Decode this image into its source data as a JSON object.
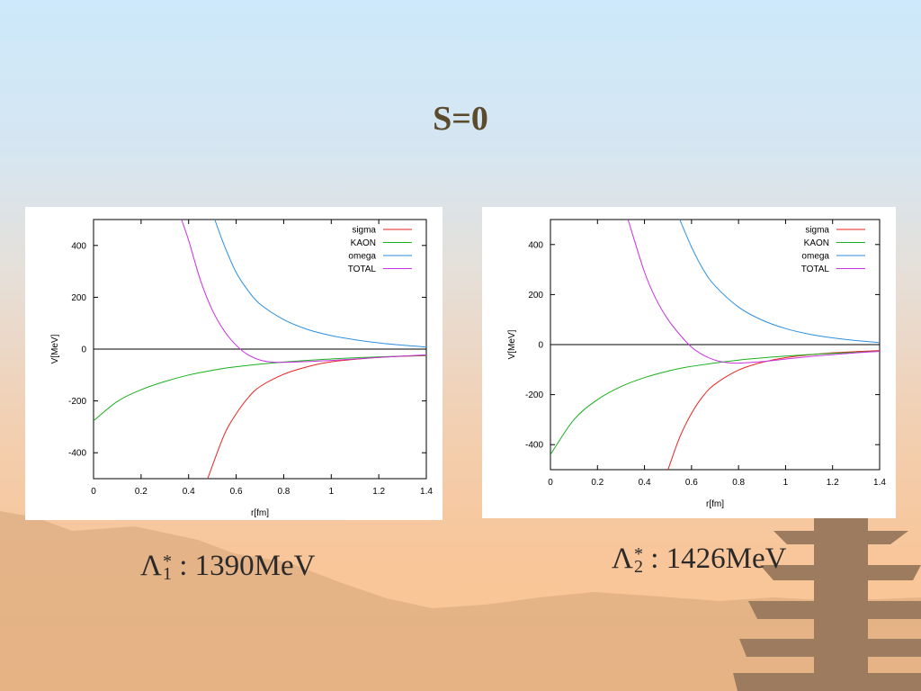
{
  "slide": {
    "title": "S=0"
  },
  "scenery": {
    "mountain_color": "#d4a478",
    "pagoda_color": "#9c7b5e"
  },
  "chart_data": [
    {
      "type": "line",
      "xlabel": "r[fm]",
      "ylabel": "V[MeV]",
      "xlim": [
        0,
        1.4
      ],
      "ylim": [
        -500,
        500
      ],
      "xticks": [
        "0",
        "0.2",
        "0.4",
        "0.6",
        "0.8",
        "1",
        "1.2",
        "1.4"
      ],
      "yticks": [
        "-400",
        "-200",
        "0",
        "200",
        "400"
      ],
      "legend": "top-right",
      "zero_line": true,
      "series": [
        {
          "name": "sigma",
          "color": "#e8231f",
          "x": [
            0.48,
            0.55,
            0.6,
            0.65,
            0.7,
            0.8,
            0.9,
            1.0,
            1.2,
            1.4
          ],
          "y": [
            -500,
            -330,
            -250,
            -188,
            -145,
            -97,
            -68,
            -49,
            -32,
            -25
          ]
        },
        {
          "name": "KAON",
          "color": "#19b01e",
          "x": [
            0,
            0.1,
            0.2,
            0.3,
            0.4,
            0.5,
            0.6,
            0.8,
            1.0,
            1.2,
            1.4
          ],
          "y": [
            -277,
            -202,
            -157,
            -125,
            -100,
            -82,
            -68,
            -50,
            -38,
            -30,
            -24
          ]
        },
        {
          "name": "omega",
          "color": "#2b8fe0",
          "x": [
            0.51,
            0.55,
            0.6,
            0.65,
            0.7,
            0.8,
            0.9,
            1.0,
            1.1,
            1.2,
            1.3,
            1.4
          ],
          "y": [
            500,
            400,
            296,
            226,
            174,
            114,
            76,
            52,
            36,
            24,
            15,
            8
          ]
        },
        {
          "name": "TOTAL",
          "color": "#c832e0",
          "x": [
            0.37,
            0.4,
            0.45,
            0.5,
            0.55,
            0.6,
            0.65,
            0.7,
            0.75,
            0.8,
            0.9,
            1.0,
            1.1,
            1.2,
            1.3,
            1.4
          ],
          "y": [
            500,
            420,
            265,
            150,
            70,
            15,
            -22,
            -42,
            -50,
            -51,
            -48,
            -44,
            -38,
            -32,
            -27,
            -22
          ]
        }
      ]
    },
    {
      "type": "line",
      "xlabel": "r[fm]",
      "ylabel": "V[MeV]",
      "xlim": [
        0,
        1.4
      ],
      "ylim": [
        -500,
        500
      ],
      "xticks": [
        "0",
        "0.2",
        "0.4",
        "0.6",
        "0.8",
        "1",
        "1.2",
        "1.4"
      ],
      "yticks": [
        "-400",
        "-200",
        "0",
        "200",
        "400"
      ],
      "legend": "top-right",
      "zero_line": true,
      "series": [
        {
          "name": "sigma",
          "color": "#e8231f",
          "x": [
            0.5,
            0.55,
            0.6,
            0.65,
            0.7,
            0.8,
            0.9,
            1.0,
            1.2,
            1.4
          ],
          "y": [
            -500,
            -370,
            -275,
            -205,
            -158,
            -102,
            -71,
            -52,
            -33,
            -24
          ]
        },
        {
          "name": "KAON",
          "color": "#19b01e",
          "x": [
            0,
            0.1,
            0.2,
            0.3,
            0.4,
            0.5,
            0.6,
            0.8,
            1.0,
            1.2,
            1.4
          ],
          "y": [
            -440,
            -300,
            -220,
            -168,
            -132,
            -106,
            -87,
            -62,
            -46,
            -35,
            -27
          ]
        },
        {
          "name": "omega",
          "color": "#2b8fe0",
          "x": [
            0.55,
            0.6,
            0.65,
            0.7,
            0.8,
            0.9,
            1.0,
            1.1,
            1.2,
            1.3,
            1.4
          ],
          "y": [
            500,
            390,
            300,
            235,
            150,
            98,
            64,
            42,
            27,
            16,
            8
          ]
        },
        {
          "name": "TOTAL",
          "color": "#c832e0",
          "x": [
            0.33,
            0.4,
            0.45,
            0.5,
            0.55,
            0.6,
            0.65,
            0.7,
            0.75,
            0.8,
            0.9,
            1.0,
            1.1,
            1.2,
            1.3,
            1.4
          ],
          "y": [
            500,
            290,
            180,
            100,
            40,
            -10,
            -42,
            -62,
            -72,
            -74,
            -68,
            -58,
            -48,
            -40,
            -33,
            -27
          ]
        }
      ]
    }
  ],
  "captions": [
    {
      "symbol": "Λ",
      "superscript": "*",
      "subscript": "1",
      "text": ": 1390MeV"
    },
    {
      "symbol": "Λ",
      "superscript": "*",
      "subscript": "2",
      "text": ": 1426MeV"
    }
  ]
}
